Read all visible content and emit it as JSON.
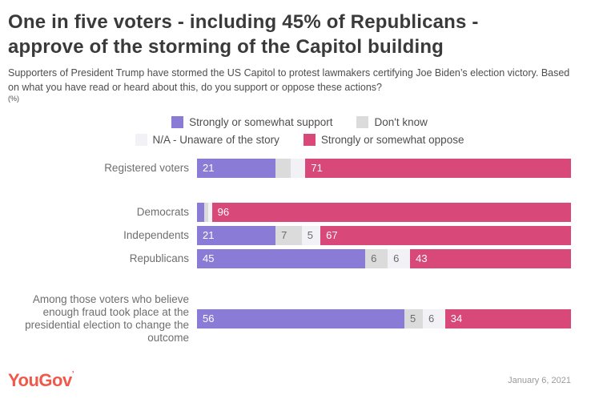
{
  "header": {
    "title_line1": "One in five voters - including 45% of Republicans -",
    "title_line2": "approve of the storming of the Capitol building",
    "subtitle": "Supporters of President Trump have stormed the US Capitol to protest lawmakers certifying Joe Biden’s election victory. Based on what you have read or heard about this, do you support or oppose these actions?",
    "unit_note": "(%)"
  },
  "legend": {
    "rows": [
      [
        {
          "label": "Strongly or somewhat support",
          "color": "#8a7cd6"
        },
        {
          "label": "Don't know",
          "color": "#dcdbdc"
        }
      ],
      [
        {
          "label": "N/A - Unaware of the story",
          "color": "#f2f1f6"
        },
        {
          "label": "Strongly or somewhat oppose",
          "color": "#d84878"
        }
      ]
    ]
  },
  "chart_data": {
    "type": "bar",
    "stacked": true,
    "orientation": "horizontal",
    "xlim": [
      0,
      100
    ],
    "label_min_value": 5,
    "series_order": [
      "Strongly or somewhat support",
      "Don't know",
      "N/A - Unaware of the story",
      "Strongly or somewhat oppose"
    ],
    "series_colors": [
      "#8a7cd6",
      "#dcdbdc",
      "#f2f1f6",
      "#d84878"
    ],
    "value_text_colors": [
      "#ffffff",
      "#6b6b6b",
      "#6b6b6b",
      "#ffffff"
    ],
    "groups": [
      {
        "rows": [
          {
            "category": "Registered voters",
            "values": [
              21,
              4,
              4,
              71
            ]
          }
        ]
      },
      {
        "rows": [
          {
            "category": "Democrats",
            "values": [
              2,
              1,
              1,
              96
            ]
          },
          {
            "category": "Independents",
            "values": [
              21,
              7,
              5,
              67
            ]
          },
          {
            "category": "Republicans",
            "values": [
              45,
              6,
              6,
              43
            ]
          }
        ]
      },
      {
        "rows": [
          {
            "category": "Among those voters who believe enough fraud took place at the presidential election to change the outcome",
            "label_lines": [
              "Among those voters who believe",
              "enough fraud took place at the",
              "presidential election to change the",
              "outcome"
            ],
            "values": [
              56,
              5,
              6,
              34
            ]
          }
        ]
      }
    ]
  },
  "footer": {
    "logo": "YouGov",
    "logo_tick": "’",
    "date": "January 6, 2021"
  }
}
